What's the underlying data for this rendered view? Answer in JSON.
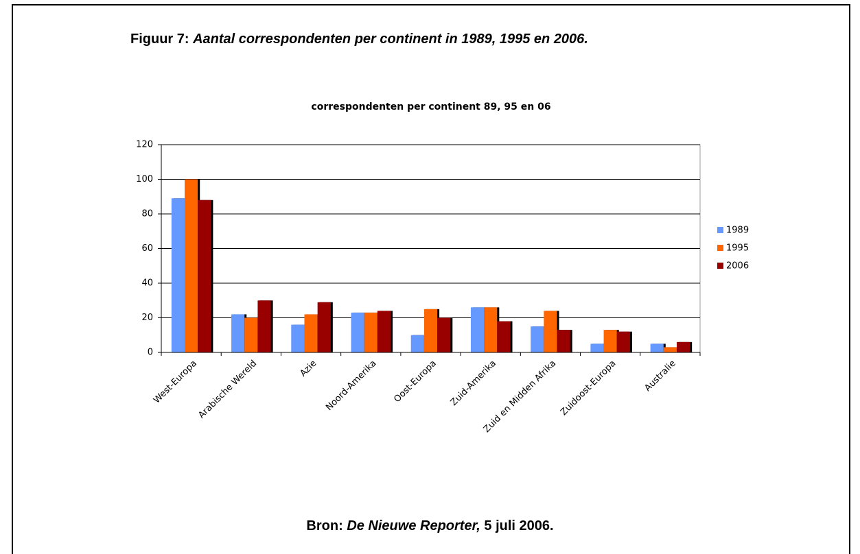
{
  "figure": {
    "label": "Figuur 7:",
    "caption": "Aantal correspondenten per continent in 1989, 1995 en 2006."
  },
  "source": {
    "label": "Bron:",
    "publication": "De Nieuwe Reporter,",
    "date": "5 juli 2006."
  },
  "chart_data": {
    "type": "bar",
    "title": "correspondenten per continent 89, 95 en 06",
    "categories": [
      "West-Europa",
      "Arabische Wereld",
      "Azie",
      "Noord-Amerika",
      "Oost-Europa",
      "Zuid-Amerika",
      "Zuid en Midden Afrika",
      "Zuidoost-Europa",
      "Australie"
    ],
    "series": [
      {
        "name": "1989",
        "color": "#6699ff",
        "values": [
          89,
          22,
          16,
          23,
          10,
          26,
          15,
          5,
          5
        ]
      },
      {
        "name": "1995",
        "color": "#ff6600",
        "values": [
          100,
          20,
          22,
          23,
          25,
          26,
          24,
          13,
          3
        ]
      },
      {
        "name": "2006",
        "color": "#990000",
        "values": [
          88,
          30,
          29,
          24,
          20,
          18,
          13,
          12,
          6
        ]
      }
    ],
    "ylim": [
      0,
      120
    ],
    "yticks": [
      0,
      20,
      40,
      60,
      80,
      100,
      120
    ],
    "grid": true,
    "legend": "right"
  }
}
